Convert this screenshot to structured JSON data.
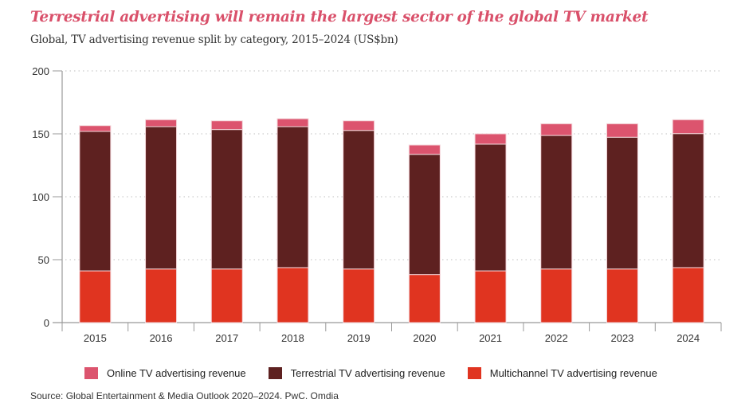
{
  "header": {
    "title": "Terrestrial advertising will remain the largest sector of the global TV market",
    "subtitle": "Global, TV advertising revenue split by category, 2015–2024 (US$bn)"
  },
  "source": "Source: Global Entertainment & Media Outlook 2020–2024. PwC. Omdia",
  "colors": {
    "online": "#dc546e",
    "terrestrial": "#5e2120",
    "multichannel": "#e03420",
    "gridline": "#cccccc",
    "axis": "#999999"
  },
  "chart_data": {
    "type": "bar",
    "stacked": true,
    "title": "Terrestrial advertising will remain the largest sector of the global TV market",
    "subtitle": "Global, TV advertising revenue split by category, 2015–2024 (US$bn)",
    "xlabel": "",
    "ylabel": "",
    "ylim": [
      0,
      200
    ],
    "yticks": [
      0,
      50,
      100,
      150,
      200
    ],
    "grid": true,
    "legend_position": "bottom",
    "categories": [
      "2015",
      "2016",
      "2017",
      "2018",
      "2019",
      "2020",
      "2021",
      "2022",
      "2023",
      "2024"
    ],
    "series": [
      {
        "name": "Multichannel TV advertising revenue",
        "key": "multichannel",
        "values": [
          41.1,
          42.6,
          42.6,
          43.7,
          42.6,
          38.2,
          41.1,
          42.6,
          42.6,
          43.7
        ]
      },
      {
        "name": "Terrestrial TV advertising revenue",
        "key": "terrestrial",
        "values": [
          110.8,
          113.1,
          110.8,
          112.0,
          110.1,
          95.5,
          100.7,
          106.1,
          104.7,
          106.5
        ]
      },
      {
        "name": "Online TV advertising revenue",
        "key": "online",
        "values": [
          4.6,
          5.5,
          6.9,
          6.3,
          7.6,
          7.4,
          8.2,
          9.3,
          10.7,
          11.0
        ]
      }
    ],
    "legend": [
      {
        "label": "Online TV advertising revenue",
        "key": "online"
      },
      {
        "label": "Terrestrial TV advertising revenue",
        "key": "terrestrial"
      },
      {
        "label": "Multichannel TV advertising revenue",
        "key": "multichannel"
      }
    ]
  }
}
